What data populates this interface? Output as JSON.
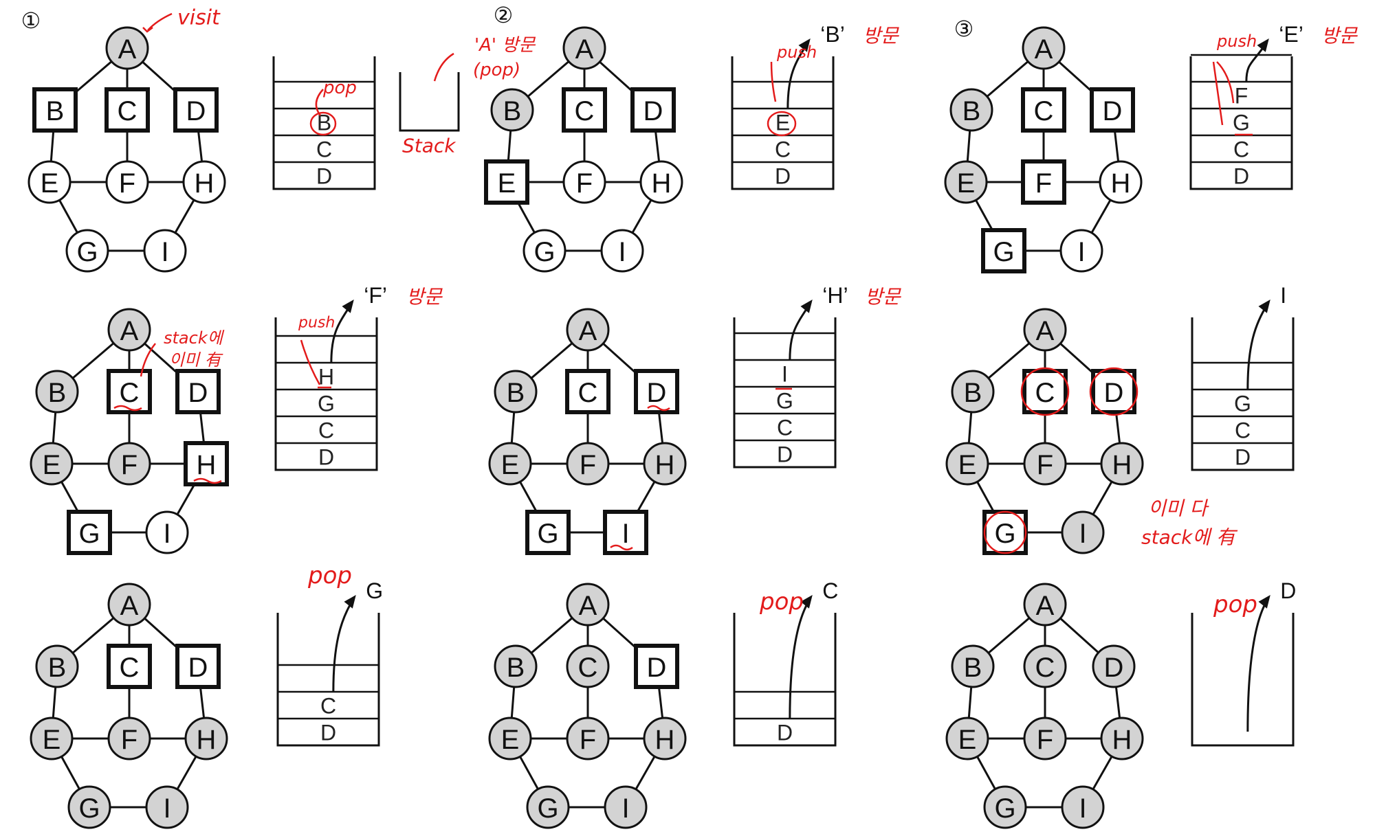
{
  "colors": {
    "visited": "#d3d3d3",
    "unvisited": "#ffffff",
    "stroke": "#111111",
    "annotation": "#e31b1b"
  },
  "nodes": [
    "A",
    "B",
    "C",
    "D",
    "E",
    "F",
    "G",
    "H",
    "I"
  ],
  "edges": [
    [
      "A",
      "B"
    ],
    [
      "A",
      "C"
    ],
    [
      "A",
      "D"
    ],
    [
      "B",
      "E"
    ],
    [
      "C",
      "F"
    ],
    [
      "D",
      "H"
    ],
    [
      "E",
      "F"
    ],
    [
      "F",
      "H"
    ],
    [
      "E",
      "G"
    ],
    [
      "H",
      "I"
    ],
    [
      "G",
      "I"
    ]
  ],
  "panels": [
    {
      "step_marker": "①",
      "nodes": {
        "A": "visited",
        "B": "pushed",
        "C": "pushed",
        "D": "pushed",
        "E": "unvisited",
        "F": "unvisited",
        "G": "unvisited",
        "H": "unvisited",
        "I": "unvisited"
      },
      "stack": {
        "items": [
          "B",
          "C",
          "D"
        ],
        "capacity": 4,
        "arrow": false,
        "out_label": "",
        "out_quoted": false,
        "out_annotation": ""
      },
      "notes": [
        {
          "text": "visit",
          "size": 30
        },
        {
          "text": "pop",
          "size": 26
        },
        {
          "text": "'A' 방문",
          "size": 26
        },
        {
          "text": "(pop)",
          "size": 26
        },
        {
          "text": "Stack",
          "size": 28
        }
      ]
    },
    {
      "step_marker": "②",
      "nodes": {
        "A": "visited",
        "B": "visited",
        "C": "pushed",
        "D": "pushed",
        "E": "pushed",
        "F": "unvisited",
        "G": "unvisited",
        "H": "unvisited",
        "I": "unvisited"
      },
      "stack": {
        "items": [
          "E",
          "C",
          "D"
        ],
        "capacity": 4,
        "arrow": true,
        "out_label": "B",
        "out_quoted": true,
        "out_annotation": "방문"
      },
      "notes": [
        {
          "text": "push",
          "size": 24
        }
      ]
    },
    {
      "step_marker": "③",
      "nodes": {
        "A": "visited",
        "B": "visited",
        "C": "pushed",
        "D": "pushed",
        "E": "visited",
        "F": "pushed",
        "G": "pushed",
        "H": "unvisited",
        "I": "unvisited"
      },
      "stack": {
        "items": [
          "F",
          "G",
          "C",
          "D"
        ],
        "capacity": 5,
        "arrow": true,
        "out_label": "E",
        "out_quoted": true,
        "out_annotation": "방문"
      },
      "notes": [
        {
          "text": "push",
          "size": 24
        }
      ]
    },
    {
      "step_marker": "",
      "nodes": {
        "A": "visited",
        "B": "visited",
        "C": "pushed",
        "D": "pushed",
        "E": "visited",
        "F": "visited",
        "G": "pushed",
        "H": "pushed",
        "I": "unvisited"
      },
      "stack": {
        "items": [
          "H",
          "G",
          "C",
          "D"
        ],
        "capacity": 5,
        "arrow": true,
        "out_label": "F",
        "out_quoted": true,
        "out_annotation": "방문"
      },
      "notes": [
        {
          "text": "stack에",
          "size": 24
        },
        {
          "text": "이미 有",
          "size": 24
        },
        {
          "text": "push",
          "size": 22
        }
      ]
    },
    {
      "step_marker": "",
      "nodes": {
        "A": "visited",
        "B": "visited",
        "C": "pushed",
        "D": "pushed",
        "E": "visited",
        "F": "visited",
        "G": "pushed",
        "H": "visited",
        "I": "pushed"
      },
      "stack": {
        "items": [
          "I",
          "G",
          "C",
          "D"
        ],
        "capacity": 5,
        "arrow": true,
        "out_label": "H",
        "out_quoted": true,
        "out_annotation": "방문"
      },
      "notes": []
    },
    {
      "step_marker": "",
      "nodes": {
        "A": "visited",
        "B": "visited",
        "C": "pushed",
        "D": "pushed",
        "E": "visited",
        "F": "visited",
        "G": "pushed",
        "H": "visited",
        "I": "visited"
      },
      "stack": {
        "items": [
          "G",
          "C",
          "D"
        ],
        "capacity": 4,
        "arrow": true,
        "out_label": "I",
        "out_quoted": false,
        "out_annotation": ""
      },
      "notes": [
        {
          "text": "이미 다",
          "size": 28
        },
        {
          "text": "stack에 有",
          "size": 28
        }
      ]
    },
    {
      "step_marker": "",
      "nodes": {
        "A": "visited",
        "B": "visited",
        "C": "pushed",
        "D": "pushed",
        "E": "visited",
        "F": "visited",
        "G": "visited",
        "H": "visited",
        "I": "visited"
      },
      "stack": {
        "items": [
          "C",
          "D"
        ],
        "capacity": 4,
        "arrow": true,
        "out_label": "G",
        "out_quoted": false,
        "out_annotation": ""
      },
      "notes": [
        {
          "text": "pop",
          "size": 34
        }
      ]
    },
    {
      "step_marker": "",
      "nodes": {
        "A": "visited",
        "B": "visited",
        "C": "visited",
        "D": "pushed",
        "E": "visited",
        "F": "visited",
        "G": "visited",
        "H": "visited",
        "I": "visited"
      },
      "stack": {
        "items": [
          "D"
        ],
        "capacity": 4,
        "arrow": true,
        "out_label": "C",
        "out_quoted": false,
        "out_annotation": ""
      },
      "notes": [
        {
          "text": "pop",
          "size": 34
        }
      ]
    },
    {
      "step_marker": "",
      "nodes": {
        "A": "visited",
        "B": "visited",
        "C": "visited",
        "D": "visited",
        "E": "visited",
        "F": "visited",
        "G": "visited",
        "H": "visited",
        "I": "visited"
      },
      "stack": {
        "items": [],
        "capacity": 4,
        "arrow": true,
        "out_label": "D",
        "out_quoted": false,
        "out_annotation": ""
      },
      "notes": [
        {
          "text": "pop",
          "size": 34
        }
      ]
    }
  ]
}
